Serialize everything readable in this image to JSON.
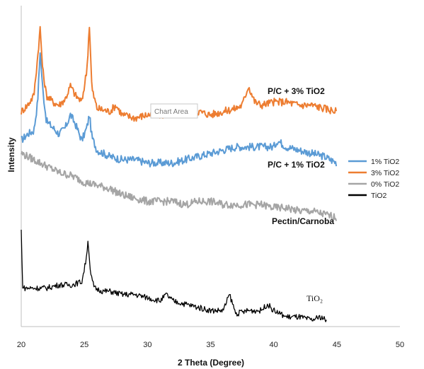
{
  "chart_data": {
    "type": "line",
    "xlabel": "2 Theta (Degree)",
    "ylabel": "Intensity",
    "xlim": [
      20,
      50
    ],
    "xticks": [
      "20",
      "25",
      "30",
      "35",
      "40",
      "45",
      "50"
    ],
    "grid": false,
    "legend_position": "right",
    "tooltip": "Chart Area",
    "series": [
      {
        "name": "1% TiO2",
        "color": "#5b9bd5",
        "inline_label": "P/C + 1% TiO2",
        "x": [
          20.0,
          20.5,
          21.0,
          21.3,
          21.5,
          21.7,
          22.0,
          22.5,
          23.0,
          23.5,
          23.9,
          24.3,
          24.8,
          25.2,
          25.4,
          25.6,
          26.0,
          27.0,
          28.0,
          29.0,
          30.0,
          31.0,
          32.0,
          33.0,
          34.0,
          35.0,
          36.0,
          37.0,
          38.0,
          39.0,
          40.0,
          40.3,
          41.0,
          42.0,
          43.0,
          44.0,
          45.0
        ],
        "y": [
          0.58,
          0.6,
          0.61,
          0.7,
          0.86,
          0.74,
          0.64,
          0.62,
          0.6,
          0.62,
          0.66,
          0.63,
          0.58,
          0.62,
          0.66,
          0.59,
          0.55,
          0.53,
          0.52,
          0.52,
          0.51,
          0.51,
          0.51,
          0.52,
          0.53,
          0.54,
          0.55,
          0.56,
          0.56,
          0.56,
          0.56,
          0.58,
          0.56,
          0.55,
          0.54,
          0.53,
          0.51
        ]
      },
      {
        "name": "3% TiO2",
        "color": "#ed7d31",
        "inline_label": "P/C + 3% TiO2",
        "x": [
          20.0,
          20.5,
          21.0,
          21.3,
          21.5,
          21.7,
          22.0,
          22.5,
          23.0,
          23.5,
          23.9,
          24.3,
          24.8,
          25.2,
          25.4,
          25.6,
          26.0,
          27.0,
          27.5,
          28.0,
          29.0,
          30.0,
          31.0,
          32.0,
          33.0,
          34.0,
          35.0,
          36.0,
          37.0,
          37.5,
          38.0,
          38.5,
          39.0,
          40.0,
          41.0,
          42.0,
          43.0,
          44.0,
          45.0
        ],
        "y": [
          0.67,
          0.69,
          0.72,
          0.84,
          0.93,
          0.8,
          0.72,
          0.7,
          0.69,
          0.71,
          0.75,
          0.72,
          0.7,
          0.8,
          0.94,
          0.74,
          0.68,
          0.67,
          0.69,
          0.66,
          0.65,
          0.66,
          0.66,
          0.66,
          0.67,
          0.67,
          0.66,
          0.67,
          0.68,
          0.69,
          0.75,
          0.7,
          0.69,
          0.7,
          0.7,
          0.69,
          0.69,
          0.68,
          0.67
        ]
      },
      {
        "name": "0% TiO2",
        "color": "#a5a5a5",
        "inline_label": "Pectin/Carnoba",
        "x": [
          20.0,
          21.0,
          22.0,
          23.0,
          24.0,
          25.0,
          26.0,
          27.0,
          28.0,
          29.0,
          30.0,
          31.0,
          32.0,
          33.0,
          34.0,
          35.0,
          36.0,
          37.0,
          38.0,
          39.0,
          40.0,
          41.0,
          42.0,
          43.0,
          44.0,
          45.0
        ],
        "y": [
          0.54,
          0.52,
          0.5,
          0.48,
          0.47,
          0.45,
          0.44,
          0.43,
          0.41,
          0.4,
          0.39,
          0.39,
          0.39,
          0.38,
          0.39,
          0.39,
          0.38,
          0.38,
          0.38,
          0.38,
          0.37,
          0.37,
          0.36,
          0.36,
          0.35,
          0.34
        ]
      },
      {
        "name": "TiO2",
        "color": "#000000",
        "inline_label": "TiO₂",
        "x": [
          20.0,
          20.1,
          20.2,
          21.0,
          22.0,
          23.0,
          24.0,
          24.8,
          25.1,
          25.3,
          25.5,
          25.8,
          26.5,
          27.0,
          28.0,
          29.0,
          30.0,
          31.0,
          31.5,
          32.0,
          33.0,
          34.0,
          35.0,
          36.0,
          36.5,
          37.0,
          38.0,
          39.0,
          39.5,
          40.0,
          41.0,
          42.0,
          43.0,
          43.7,
          44.2
        ],
        "y": [
          0.3,
          0.13,
          0.12,
          0.12,
          0.12,
          0.13,
          0.13,
          0.14,
          0.2,
          0.27,
          0.16,
          0.12,
          0.11,
          0.11,
          0.1,
          0.1,
          0.09,
          0.08,
          0.1,
          0.08,
          0.07,
          0.06,
          0.05,
          0.05,
          0.1,
          0.04,
          0.05,
          0.05,
          0.07,
          0.05,
          0.03,
          0.03,
          0.02,
          0.03,
          0.02
        ]
      }
    ]
  }
}
